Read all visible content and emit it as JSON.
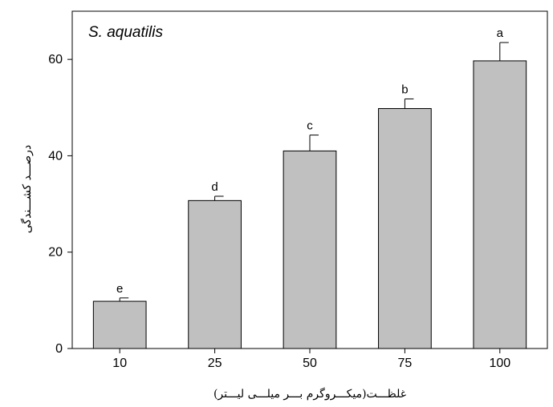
{
  "chart_data": {
    "type": "bar",
    "title": "S. aquatilis",
    "xlabel": "غلظـــت(میکـــروگرم بـــر میلـــی لیـــتر)",
    "ylabel": "درصـــد کشـــندگی",
    "categories": [
      "10",
      "25",
      "50",
      "75",
      "100"
    ],
    "values": [
      9.8,
      30.7,
      41.0,
      49.8,
      59.7
    ],
    "errors": [
      0.7,
      0.9,
      3.3,
      2.0,
      3.8
    ],
    "significance_letters": [
      "e",
      "d",
      "c",
      "b",
      "a"
    ],
    "yticks": [
      0,
      20,
      40,
      60
    ],
    "ylim": [
      0,
      70
    ],
    "bar_color": "#c0c0c0",
    "bar_edge_color": "#000000",
    "grid": false,
    "legend": "none"
  }
}
